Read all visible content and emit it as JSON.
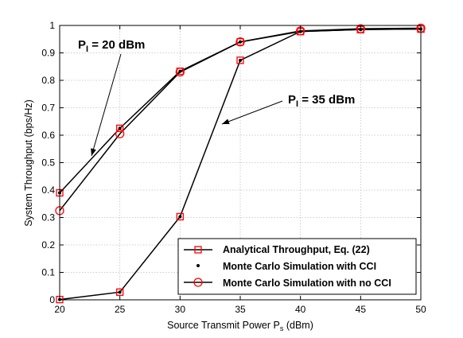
{
  "chart_data": {
    "type": "line",
    "xlabel": "Source Transmit Power P",
    "xlabel_sub": "s",
    "xlabel_unit": " (dBm)",
    "ylabel": "System Throughput (bps/Hz)",
    "xlim": [
      20,
      50
    ],
    "ylim": [
      0,
      1
    ],
    "x_ticks": [
      "20",
      "25",
      "30",
      "35",
      "40",
      "45",
      "50"
    ],
    "y_ticks": [
      "0",
      "0.1",
      "0.2",
      "0.3",
      "0.4",
      "0.5",
      "0.6",
      "0.7",
      "0.8",
      "0.9",
      "1"
    ],
    "grid": true,
    "legend_position": "bottom-right",
    "x": [
      20,
      25,
      30,
      35,
      40,
      45,
      50
    ],
    "curves": [
      {
        "group": "P_I = 20 dBm",
        "series": [
          {
            "name": "Analytical Throughput, Eq. (22)",
            "values": [
              0.39,
              0.625,
              0.833,
              0.94,
              0.978,
              0.985,
              0.987
            ]
          },
          {
            "name": "Monte Carlo Simulation with CCI",
            "values": [
              0.39,
              0.625,
              0.833,
              0.94,
              0.978,
              0.985,
              0.987
            ]
          },
          {
            "name": "Monte Carlo Simulation with no CCI",
            "values": [
              0.325,
              0.605,
              0.83,
              0.94,
              0.98,
              0.988,
              0.99
            ]
          }
        ]
      },
      {
        "group": "P_I = 35 dBm",
        "series": [
          {
            "name": "Analytical Throughput, Eq. (22)",
            "values": [
              0.001,
              0.028,
              0.303,
              0.873,
              0.978,
              0.985,
              0.987
            ]
          },
          {
            "name": "Monte Carlo Simulation with CCI",
            "values": [
              0.001,
              0.028,
              0.303,
              0.873,
              0.978,
              0.985,
              0.987
            ]
          }
        ]
      }
    ],
    "annotations": [
      {
        "prefix": "P",
        "sub": "I",
        "suffix": " = 20 dBm"
      },
      {
        "prefix": "P",
        "sub": "I",
        "suffix": " = 35 dBm"
      }
    ],
    "legend": [
      {
        "label": "Analytical Throughput, Eq. (22)",
        "marker": "square"
      },
      {
        "label": "Monte Carlo Simulation with CCI",
        "marker": "dot"
      },
      {
        "label": "Monte Carlo Simulation with no CCI",
        "marker": "circle"
      }
    ],
    "colors": {
      "line": "#000000",
      "marker": "#ff0000",
      "grid": "#c0c0c0"
    }
  }
}
